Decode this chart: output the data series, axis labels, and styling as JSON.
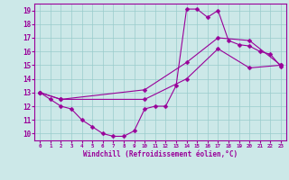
{
  "xlabel": "Windchill (Refroidissement éolien,°C)",
  "bg_color": "#cce8e8",
  "line_color": "#990099",
  "grid_color": "#99cccc",
  "xlim": [
    -0.5,
    23.5
  ],
  "ylim": [
    9.5,
    19.5
  ],
  "yticks": [
    10,
    11,
    12,
    13,
    14,
    15,
    16,
    17,
    18,
    19
  ],
  "xticks": [
    0,
    1,
    2,
    3,
    4,
    5,
    6,
    7,
    8,
    9,
    10,
    11,
    12,
    13,
    14,
    15,
    16,
    17,
    18,
    19,
    20,
    21,
    22,
    23
  ],
  "series1_x": [
    0,
    1,
    2,
    3,
    4,
    5,
    6,
    7,
    8,
    9,
    10,
    11,
    12,
    13,
    14,
    15,
    16,
    17,
    18,
    19,
    20,
    21,
    22,
    23
  ],
  "series1_y": [
    13,
    12.5,
    12,
    11.8,
    11,
    10.5,
    10,
    9.8,
    9.8,
    10.2,
    11.8,
    12,
    12,
    13.5,
    19.1,
    19.1,
    18.5,
    19.0,
    16.8,
    16.5,
    16.4,
    16.0,
    15.8,
    14.9
  ],
  "series2_x": [
    0,
    2,
    10,
    14,
    17,
    20,
    23
  ],
  "series2_y": [
    13,
    12.5,
    13.2,
    15.2,
    17.0,
    16.8,
    15.0
  ],
  "series3_x": [
    0,
    2,
    10,
    14,
    17,
    20,
    23
  ],
  "series3_y": [
    13,
    12.5,
    12.5,
    14.0,
    16.2,
    14.8,
    15.0
  ]
}
